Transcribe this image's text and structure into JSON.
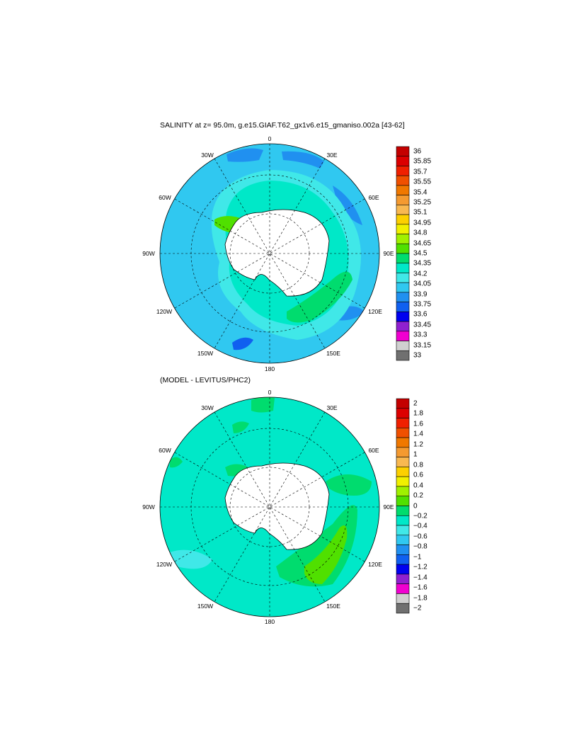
{
  "top_panel": {
    "title": "SALINITY at z=  95.0m, g.e15.GIAF.T62_gx1v6.e15_gmaniso.002a [43-62]",
    "lon_labels": {
      "n": "0",
      "nne": "30E",
      "ene": "60E",
      "e": "90E",
      "ese": "120E",
      "sse": "150E",
      "s": "180",
      "ssw": "150W",
      "wsw": "120W",
      "w": "90W",
      "wnw": "60W",
      "nnw": "30W"
    },
    "colorbar": {
      "labels": [
        "36",
        "35.85",
        "35.7",
        "35.55",
        "35.4",
        "35.25",
        "35.1",
        "34.95",
        "34.8",
        "34.65",
        "34.5",
        "34.35",
        "34.2",
        "34.05",
        "33.9",
        "33.75",
        "33.6",
        "33.45",
        "33.3",
        "33.15",
        "33"
      ],
      "colors": [
        "#c40000",
        "#dc0000",
        "#f02000",
        "#f05000",
        "#f07800",
        "#f49a30",
        "#f8b850",
        "#fcd000",
        "#f0f000",
        "#a0f000",
        "#50e000",
        "#00dc6e",
        "#00e8c8",
        "#40e8e8",
        "#30c8f0",
        "#2090f0",
        "#1060f0",
        "#0000f0",
        "#9020d0",
        "#f000d0",
        "#d0d0d0",
        "#707070"
      ]
    }
  },
  "bottom_panel": {
    "title": "(MODEL - LEVITUS/PHC2)",
    "lon_labels": {
      "n": "0",
      "nne": "30E",
      "ene": "60E",
      "e": "90E",
      "ese": "120E",
      "sse": "150E",
      "s": "180",
      "ssw": "150W",
      "wsw": "120W",
      "w": "90W",
      "wnw": "60W",
      "nnw": "30W"
    },
    "colorbar": {
      "labels": [
        "2",
        "1.8",
        "1.6",
        "1.4",
        "1.2",
        "1",
        "0.8",
        "0.6",
        "0.4",
        "0.2",
        "0",
        "−0.2",
        "−0.4",
        "−0.6",
        "−0.8",
        "−1",
        "−1.2",
        "−1.4",
        "−1.6",
        "−1.8",
        "−2"
      ],
      "colors": [
        "#c40000",
        "#dc0000",
        "#f02000",
        "#f05000",
        "#f07800",
        "#f49a30",
        "#f8b850",
        "#fcd000",
        "#f0f000",
        "#a0f000",
        "#50e000",
        "#00dc6e",
        "#00e8c8",
        "#40e8e8",
        "#30c8f0",
        "#2090f0",
        "#1060f0",
        "#0000f0",
        "#9020d0",
        "#f000d0",
        "#d0d0d0",
        "#707070"
      ]
    }
  }
}
